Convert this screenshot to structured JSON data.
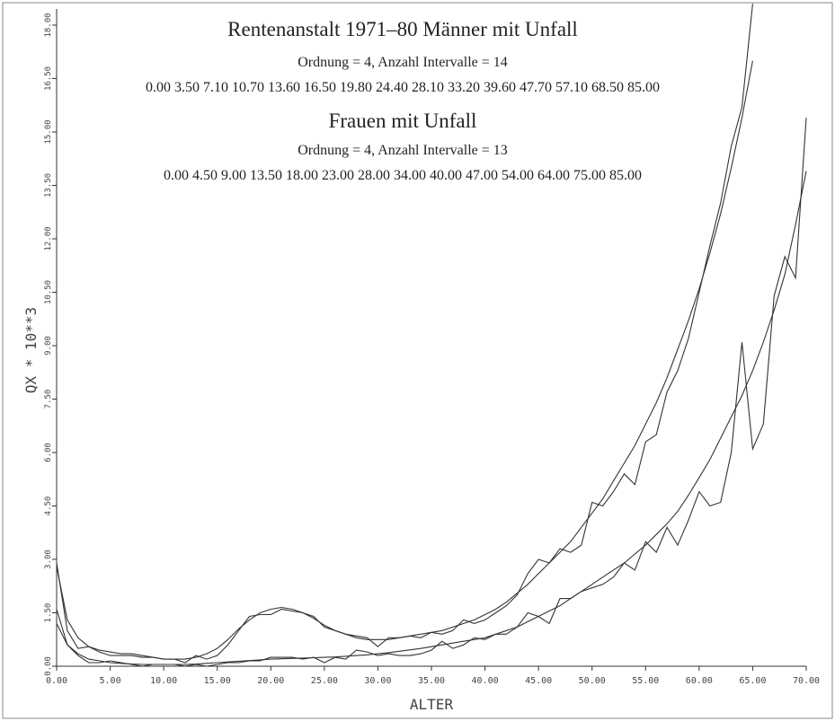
{
  "chart_data": {
    "type": "line",
    "title": "Rentenanstalt 1971–80 Männer mit Unfall",
    "subtitle": "Ordnung = 4, Anzahl Intervalle = 14",
    "knots": "0.00 3.50 7.10 10.70 13.60 16.50 19.80 24.40 28.10 33.20 39.60 47.70 57.10 68.50 85.00",
    "title2": "Frauen mit Unfall",
    "subtitle2": "Ordnung = 4, Anzahl Intervalle = 13",
    "knots2": "0.00 4.50 9.00 13.50 18.00 23.00 28.00 34.00 40.00 47.00 54.00 64.00 75.00 85.00",
    "x_label": "ALTER",
    "y_label": "QX * 10**3",
    "xlim": [
      0,
      70
    ],
    "ylim": [
      0,
      18
    ],
    "xticks": [
      {
        "value": 0,
        "label": "0.00"
      },
      {
        "value": 5,
        "label": "5.00"
      },
      {
        "value": 10,
        "label": "10.00"
      },
      {
        "value": 15,
        "label": "15.00"
      },
      {
        "value": 20,
        "label": "20.00"
      },
      {
        "value": 25,
        "label": "25.00"
      },
      {
        "value": 30,
        "label": "30.00"
      },
      {
        "value": 35,
        "label": "35.00"
      },
      {
        "value": 40,
        "label": "40.00"
      },
      {
        "value": 45,
        "label": "45.00"
      },
      {
        "value": 50,
        "label": "50.00"
      },
      {
        "value": 55,
        "label": "55.00"
      },
      {
        "value": 60,
        "label": "60.00"
      },
      {
        "value": 65,
        "label": "65.00"
      },
      {
        "value": 70,
        "label": "70.00"
      }
    ],
    "yticks": [
      {
        "value": 0,
        "label": "0.00"
      },
      {
        "value": 1.5,
        "label": "1.50"
      },
      {
        "value": 3,
        "label": "3.00"
      },
      {
        "value": 4.5,
        "label": "4.50"
      },
      {
        "value": 6,
        "label": "6.00"
      },
      {
        "value": 7.5,
        "label": "7.50"
      },
      {
        "value": 9,
        "label": "9.00"
      },
      {
        "value": 10.5,
        "label": "10.50"
      },
      {
        "value": 12,
        "label": "12.00"
      },
      {
        "value": 13.5,
        "label": "13.50"
      },
      {
        "value": 15,
        "label": "15.00"
      },
      {
        "value": 16.5,
        "label": "16.50"
      },
      {
        "value": 18,
        "label": "18.00"
      }
    ],
    "series": [
      {
        "color": "#333333",
        "x": [
          0,
          1,
          2,
          3,
          4,
          5,
          6,
          7,
          8,
          9,
          10,
          11,
          12,
          13,
          14,
          15,
          16,
          17,
          18,
          19,
          20,
          21,
          22,
          23,
          24,
          25,
          26,
          27,
          28,
          29,
          30,
          31,
          32,
          33,
          34,
          35,
          36,
          37,
          38,
          39,
          40,
          41,
          42,
          43,
          44,
          45,
          46,
          47,
          48,
          49,
          50,
          51,
          52,
          53,
          54,
          55,
          56,
          57,
          58,
          59,
          60,
          61,
          62,
          63,
          64,
          65
        ],
        "values": [
          2.9,
          1.0,
          0.5,
          0.55,
          0.4,
          0.3,
          0.3,
          0.3,
          0.25,
          0.25,
          0.2,
          0.2,
          0.1,
          0.3,
          0.2,
          0.3,
          0.6,
          1.0,
          1.4,
          1.45,
          1.45,
          1.6,
          1.55,
          1.5,
          1.4,
          1.1,
          1.0,
          0.9,
          0.85,
          0.8,
          0.55,
          0.8,
          0.8,
          0.85,
          0.8,
          0.95,
          0.9,
          1.0,
          1.3,
          1.2,
          1.3,
          1.5,
          1.7,
          2.0,
          2.6,
          3.0,
          2.9,
          3.3,
          3.2,
          3.4,
          4.6,
          4.5,
          4.9,
          5.4,
          5.1,
          6.3,
          6.5,
          7.7,
          8.3,
          9.2,
          10.5,
          11.8,
          13.0,
          14.6,
          15.7,
          18.6
        ]
      },
      {
        "color": "#333333",
        "x": [
          0,
          1,
          2,
          3,
          4,
          5,
          6,
          7,
          8,
          9,
          10,
          11,
          12,
          13,
          14,
          15,
          16,
          17,
          18,
          19,
          20,
          21,
          22,
          23,
          24,
          25,
          26,
          27,
          28,
          29,
          30,
          31,
          32,
          33,
          34,
          35,
          36,
          37,
          38,
          39,
          40,
          41,
          42,
          43,
          44,
          45,
          46,
          47,
          48,
          49,
          50,
          51,
          52,
          53,
          54,
          55,
          56,
          57,
          58,
          59,
          60,
          61,
          62,
          63,
          64,
          65
        ],
        "values": [
          2.8,
          1.3,
          0.8,
          0.55,
          0.45,
          0.4,
          0.35,
          0.35,
          0.3,
          0.25,
          0.2,
          0.2,
          0.2,
          0.25,
          0.35,
          0.5,
          0.75,
          1.05,
          1.3,
          1.5,
          1.6,
          1.65,
          1.6,
          1.5,
          1.35,
          1.15,
          1.0,
          0.9,
          0.8,
          0.75,
          0.75,
          0.75,
          0.8,
          0.85,
          0.9,
          0.95,
          1.0,
          1.1,
          1.2,
          1.3,
          1.45,
          1.6,
          1.8,
          2.05,
          2.3,
          2.6,
          2.9,
          3.2,
          3.5,
          3.9,
          4.3,
          4.7,
          5.2,
          5.7,
          6.2,
          6.8,
          7.4,
          8.1,
          8.9,
          9.7,
          10.6,
          11.6,
          12.7,
          14.0,
          15.4,
          17.0
        ]
      },
      {
        "color": "#333333",
        "x": [
          0,
          1,
          2,
          3,
          4,
          5,
          6,
          7,
          8,
          9,
          10,
          11,
          12,
          13,
          14,
          15,
          16,
          17,
          18,
          19,
          20,
          21,
          22,
          23,
          24,
          25,
          26,
          27,
          28,
          29,
          30,
          31,
          32,
          33,
          34,
          35,
          36,
          37,
          38,
          39,
          40,
          41,
          42,
          43,
          44,
          45,
          46,
          47,
          48,
          49,
          50,
          51,
          52,
          53,
          54,
          55,
          56,
          57,
          58,
          59,
          60,
          61,
          62,
          63,
          64,
          65,
          66,
          67,
          68,
          69,
          70
        ],
        "values": [
          1.6,
          0.6,
          0.3,
          0.1,
          0.1,
          0.15,
          0.1,
          0.05,
          0,
          0.05,
          0.05,
          0.05,
          0,
          0.05,
          0,
          0.05,
          0.1,
          0.1,
          0.15,
          0.15,
          0.25,
          0.25,
          0.25,
          0.2,
          0.25,
          0.1,
          0.25,
          0.2,
          0.45,
          0.4,
          0.3,
          0.35,
          0.3,
          0.3,
          0.35,
          0.45,
          0.7,
          0.5,
          0.6,
          0.8,
          0.75,
          0.9,
          0.9,
          1.1,
          1.5,
          1.4,
          1.2,
          1.9,
          1.9,
          2.1,
          2.2,
          2.3,
          2.5,
          2.9,
          2.7,
          3.5,
          3.2,
          3.9,
          3.4,
          4.1,
          4.9,
          4.5,
          4.6,
          6.0,
          9.1,
          6.1,
          6.8,
          10.4,
          11.5,
          10.9,
          15.4
        ]
      },
      {
        "color": "#333333",
        "x": [
          0,
          1,
          2,
          3,
          4,
          5,
          6,
          7,
          8,
          9,
          10,
          11,
          12,
          13,
          14,
          15,
          16,
          17,
          18,
          19,
          20,
          21,
          22,
          23,
          24,
          25,
          26,
          27,
          28,
          29,
          30,
          31,
          32,
          33,
          34,
          35,
          36,
          37,
          38,
          39,
          40,
          41,
          42,
          43,
          44,
          45,
          46,
          47,
          48,
          49,
          50,
          51,
          52,
          53,
          54,
          55,
          56,
          57,
          58,
          59,
          60,
          61,
          62,
          63,
          64,
          65,
          66,
          67,
          68,
          69,
          70
        ],
        "values": [
          1.2,
          0.6,
          0.35,
          0.2,
          0.15,
          0.1,
          0.08,
          0.06,
          0.05,
          0.05,
          0.05,
          0.05,
          0.05,
          0.06,
          0.08,
          0.1,
          0.12,
          0.14,
          0.16,
          0.18,
          0.2,
          0.21,
          0.22,
          0.23,
          0.24,
          0.25,
          0.26,
          0.28,
          0.3,
          0.32,
          0.35,
          0.38,
          0.42,
          0.46,
          0.5,
          0.55,
          0.6,
          0.65,
          0.7,
          0.75,
          0.8,
          0.9,
          1.0,
          1.1,
          1.25,
          1.4,
          1.55,
          1.7,
          1.9,
          2.1,
          2.3,
          2.5,
          2.7,
          2.9,
          3.15,
          3.4,
          3.7,
          4.0,
          4.35,
          4.8,
          5.3,
          5.8,
          6.4,
          7.0,
          7.6,
          8.3,
          9.1,
          10.0,
          11.0,
          12.4,
          13.9
        ]
      }
    ]
  }
}
